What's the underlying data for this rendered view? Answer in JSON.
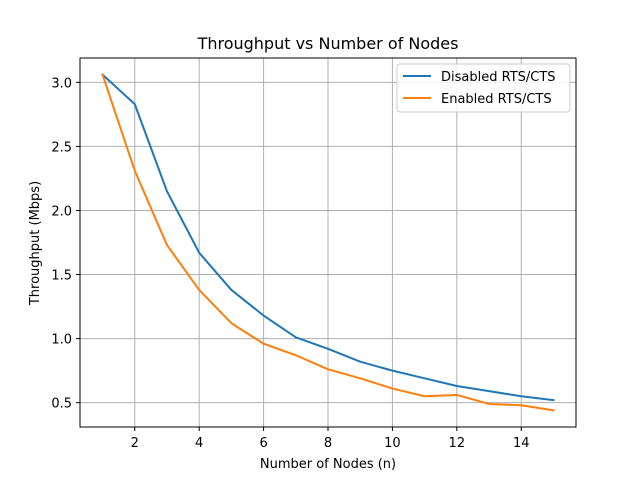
{
  "chart_data": {
    "type": "line",
    "title": "Throughput vs Number of Nodes",
    "xlabel": "Number of Nodes (n)",
    "ylabel": "Throughput (Mbps)",
    "x": [
      1,
      2,
      3,
      4,
      5,
      6,
      7,
      8,
      9,
      10,
      11,
      12,
      13,
      14,
      15
    ],
    "xlim": [
      0.3,
      15.7
    ],
    "ylim": [
      0.31,
      3.19
    ],
    "xticks": [
      2,
      4,
      6,
      8,
      10,
      12,
      14
    ],
    "yticks": [
      0.5,
      1.0,
      1.5,
      2.0,
      2.5,
      3.0
    ],
    "xtick_labels": [
      "2",
      "4",
      "6",
      "8",
      "10",
      "12",
      "14"
    ],
    "ytick_labels": [
      "0.5",
      "1.0",
      "1.5",
      "2.0",
      "2.5",
      "3.0"
    ],
    "grid": true,
    "legend_position": "upper-right",
    "series": [
      {
        "name": "Disabled RTS/CTS",
        "color": "#1f77b4",
        "values": [
          3.06,
          2.83,
          2.15,
          1.67,
          1.38,
          1.18,
          1.01,
          0.92,
          0.82,
          0.75,
          0.69,
          0.63,
          0.59,
          0.55,
          0.52
        ]
      },
      {
        "name": "Enabled RTS/CTS",
        "color": "#ff7f0e",
        "values": [
          3.06,
          2.31,
          1.73,
          1.38,
          1.12,
          0.96,
          0.87,
          0.76,
          0.69,
          0.61,
          0.55,
          0.56,
          0.49,
          0.48,
          0.44
        ]
      }
    ]
  }
}
